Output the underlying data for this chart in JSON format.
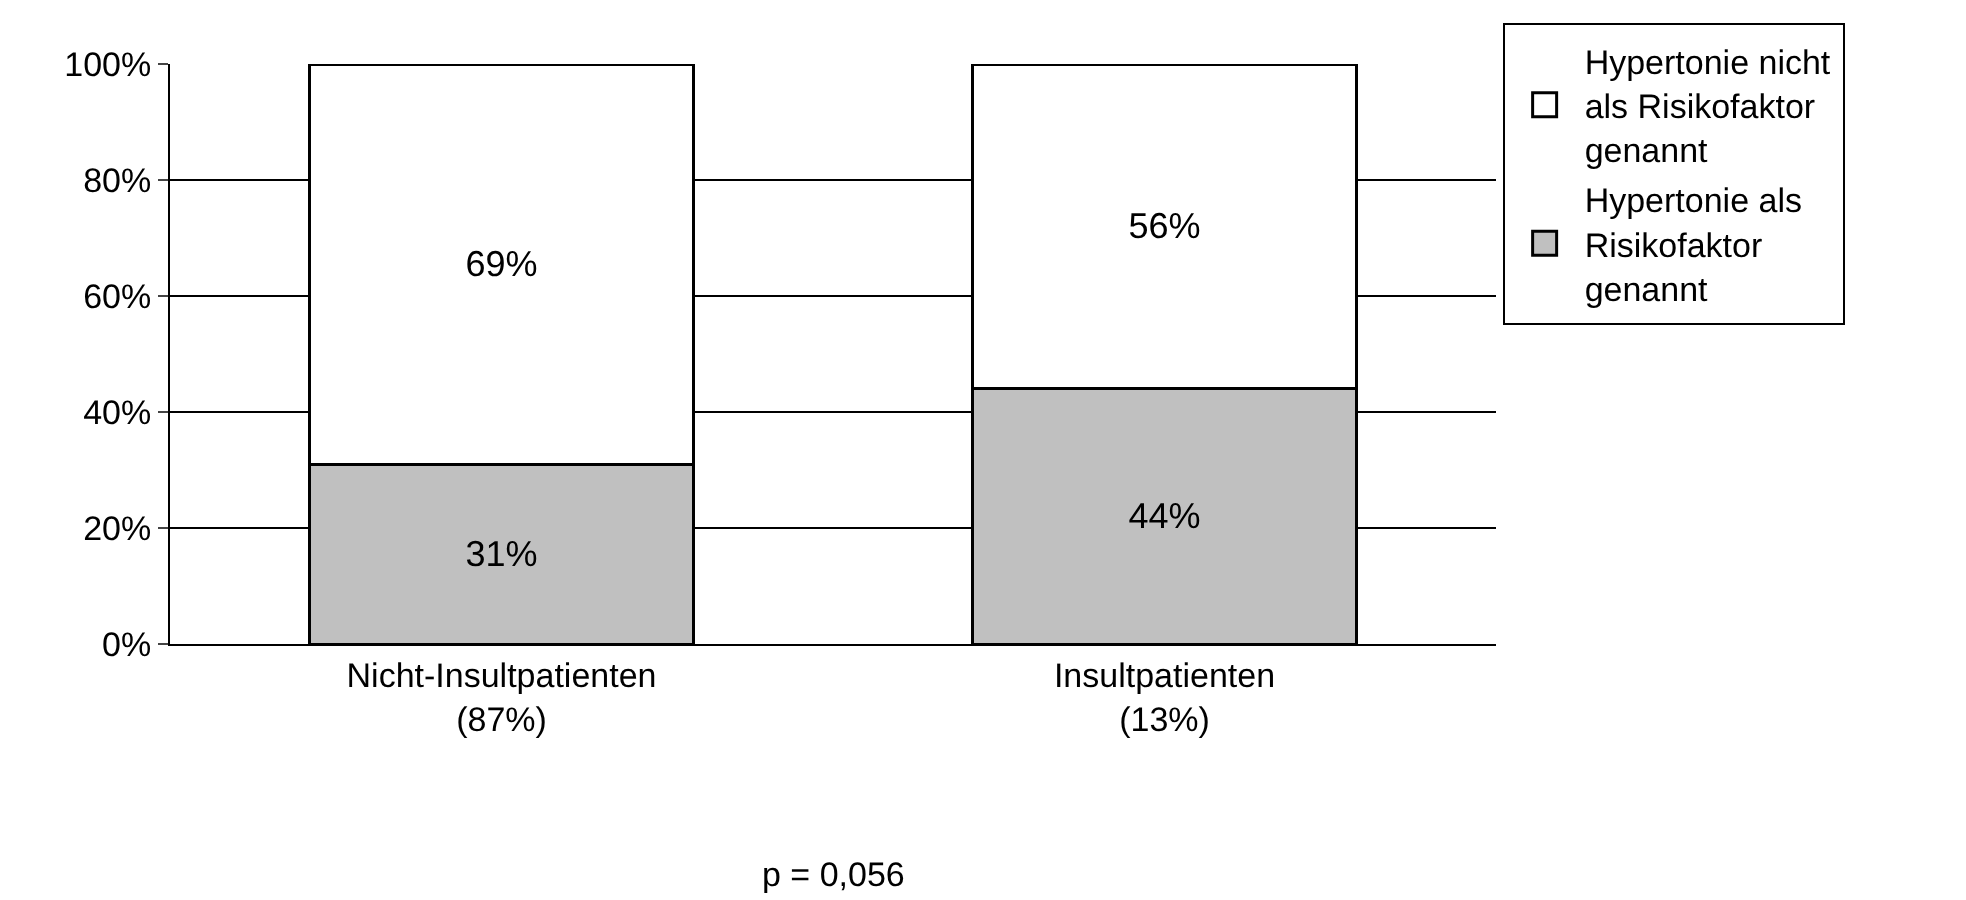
{
  "chart_data": {
    "type": "bar",
    "stacked": true,
    "categories": [
      "Nicht-Insultpatienten\n(87%)",
      "Insultpatienten\n(13%)"
    ],
    "series": [
      {
        "name": "Hypertonie als Risikofaktor genannt",
        "color": "#c0c0c0",
        "values": [
          31,
          44
        ],
        "value_labels": [
          "31%",
          "44%"
        ]
      },
      {
        "name": "Hypertonie nicht als Risikofaktor genannt",
        "color": "#ffffff",
        "values": [
          69,
          56
        ],
        "value_labels": [
          "69%",
          "56%"
        ]
      }
    ],
    "ylim": [
      0,
      100
    ],
    "yticks": [
      {
        "value": 0,
        "label": "0%"
      },
      {
        "value": 20,
        "label": "20%"
      },
      {
        "value": 40,
        "label": "40%"
      },
      {
        "value": 60,
        "label": "60%"
      },
      {
        "value": 80,
        "label": "80%"
      },
      {
        "value": 100,
        "label": "100%"
      }
    ],
    "grid": "y",
    "legend": "right",
    "annotations": [
      "p = 0,056"
    ]
  }
}
